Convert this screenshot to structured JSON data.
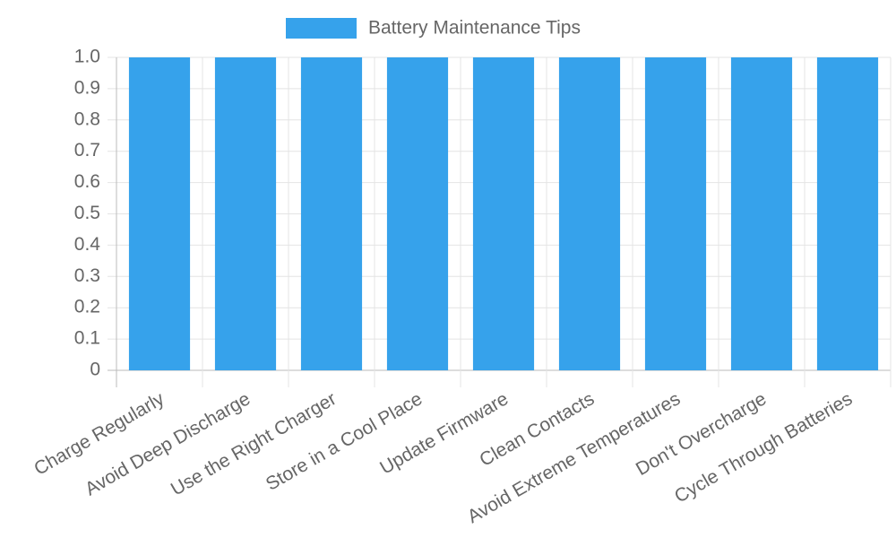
{
  "chart_data": {
    "type": "bar",
    "categories": [
      "Charge Regularly",
      "Avoid Deep Discharge",
      "Use the Right Charger",
      "Store in a Cool Place",
      "Update Firmware",
      "Clean Contacts",
      "Avoid Extreme Temperatures",
      "Don't Overcharge",
      "Cycle Through Batteries"
    ],
    "series": [
      {
        "name": "Battery Maintenance Tips",
        "color": "#36a2eb",
        "values": [
          1,
          1,
          1,
          1,
          1,
          1,
          1,
          1,
          1
        ]
      }
    ],
    "ylim": [
      0,
      1
    ],
    "yticks": [
      0,
      0.1,
      0.2,
      0.3,
      0.4,
      0.5,
      0.6,
      0.7,
      0.8,
      0.9,
      {
        "value": 1,
        "label": "1.0"
      }
    ],
    "grid": true,
    "legend": "top"
  }
}
